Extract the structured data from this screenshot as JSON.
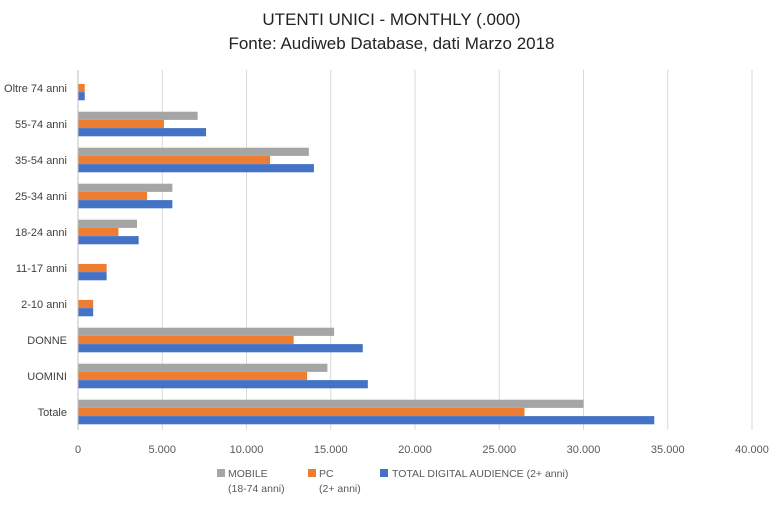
{
  "chart_data": {
    "type": "bar",
    "orientation": "horizontal",
    "title": "UTENTI UNICI - MONTHLY (.000)",
    "subtitle": "Fonte: Audiweb Database, dati Marzo 2018",
    "categories": [
      "Totale",
      "UOMINI",
      "DONNE",
      "2-10 anni",
      "11-17 anni",
      "18-24 anni",
      "25-34 anni",
      "35-54 anni",
      "55-74 anni",
      "Oltre 74 anni"
    ],
    "series": [
      {
        "name": "MOBILE",
        "name2": "(18-74 anni)",
        "color": "#a5a5a5",
        "values": [
          30000,
          14800,
          15200,
          null,
          null,
          3500,
          5600,
          13700,
          7100,
          null
        ]
      },
      {
        "name": "PC",
        "name2": "(2+ anni)",
        "color": "#ed7d31",
        "values": [
          26500,
          13600,
          12800,
          900,
          1700,
          2400,
          4100,
          11400,
          5100,
          400
        ]
      },
      {
        "name": "TOTAL DIGITAL AUDIENCE (2+ anni)",
        "name2": "",
        "color": "#4472c4",
        "values": [
          34200,
          17200,
          16900,
          900,
          1700,
          3600,
          5600,
          14000,
          7600,
          400
        ]
      }
    ],
    "xlim": [
      0,
      40000
    ],
    "xticks": [
      0,
      5000,
      10000,
      15000,
      20000,
      25000,
      30000,
      35000,
      40000
    ],
    "xtick_labels": [
      "0",
      "5.000",
      "10.000",
      "15.000",
      "20.000",
      "25.000",
      "30.000",
      "35.000",
      "40.000"
    ],
    "grid": true,
    "legend": "bottom"
  }
}
